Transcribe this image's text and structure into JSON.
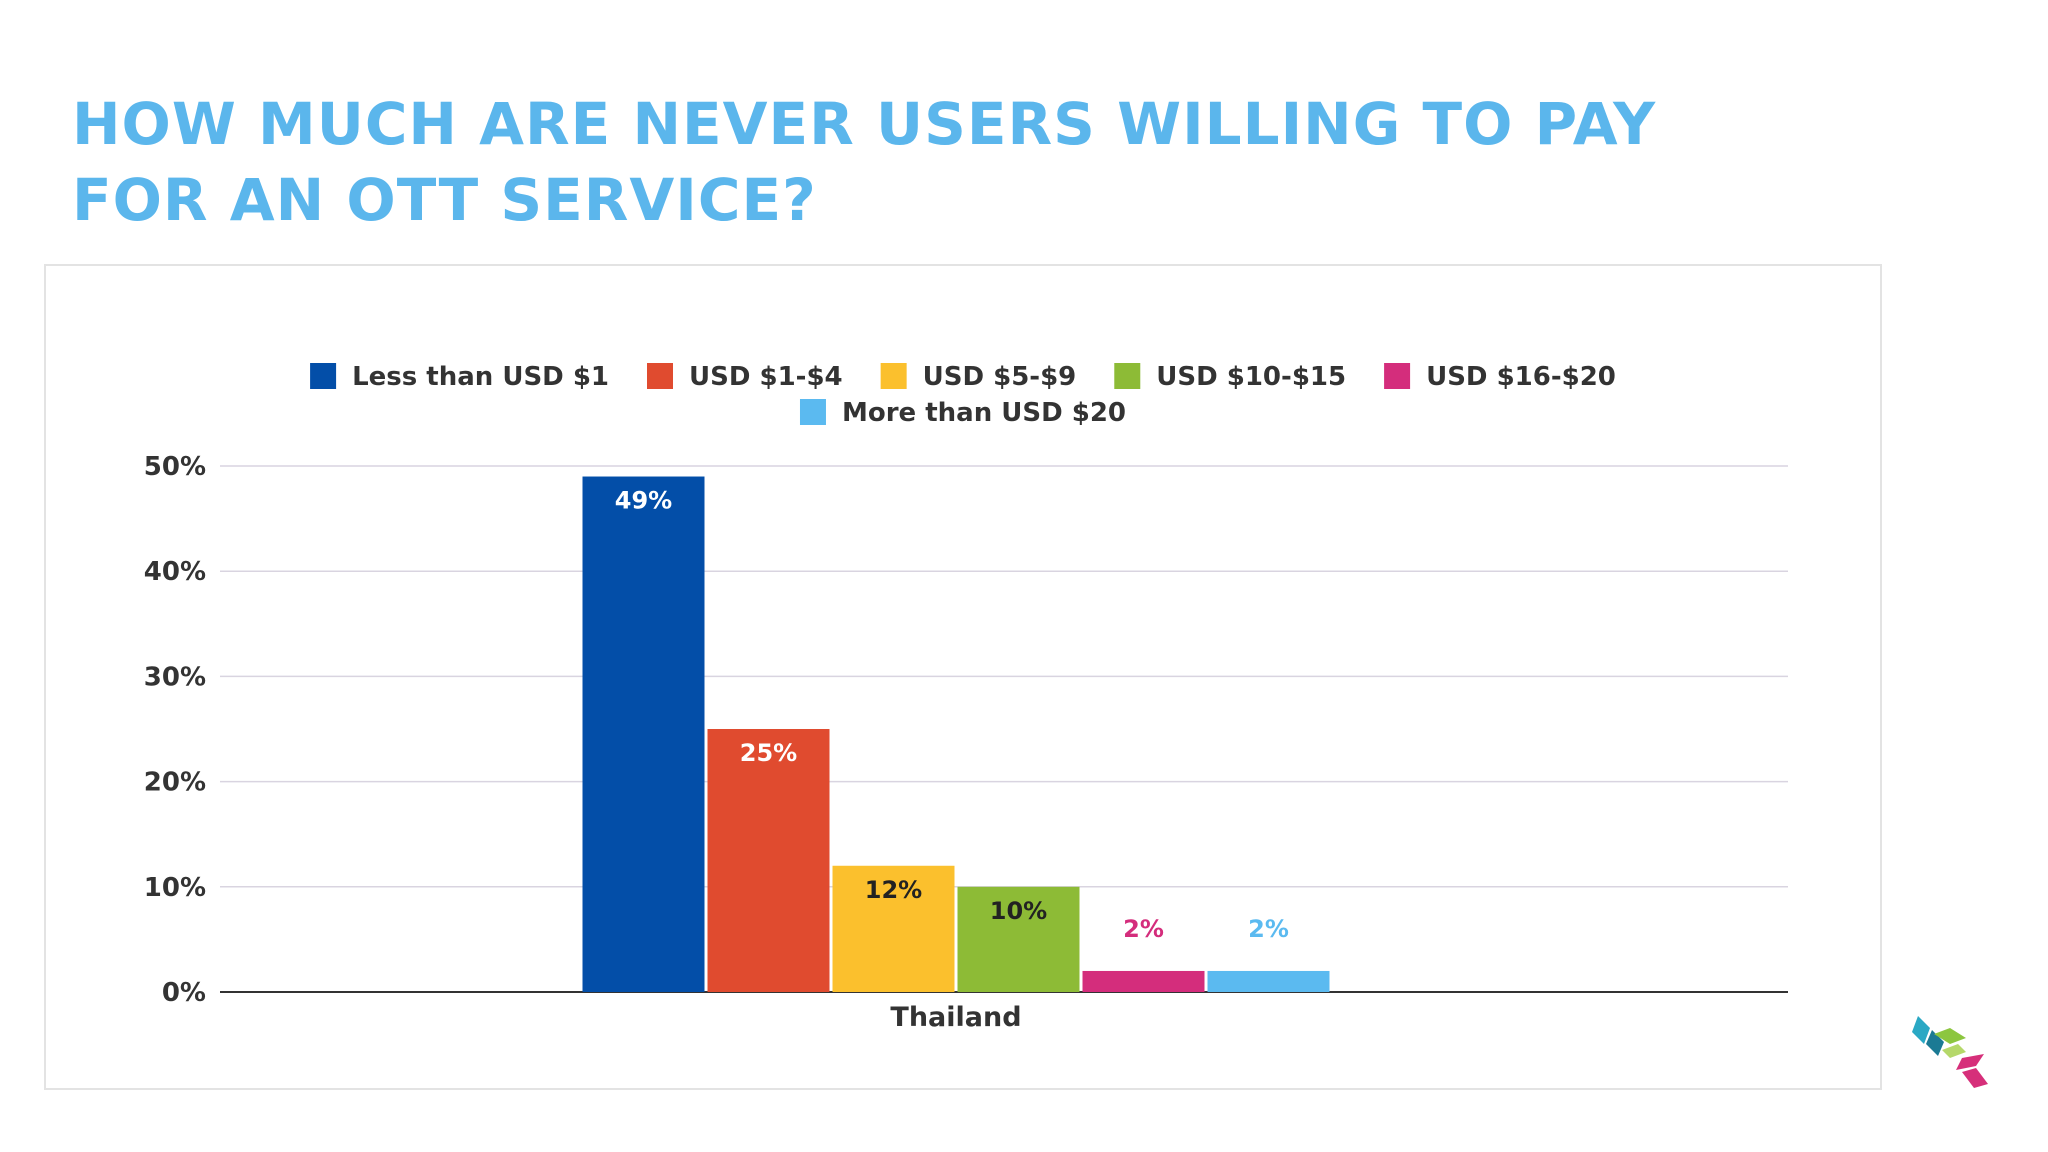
{
  "slide": {
    "title_line1": "HOW MUCH ARE NEVER USERS WILLING TO PAY",
    "title_line2": "FOR AN OTT SERVICE?"
  },
  "colors": {
    "title": "#5bb6ec",
    "grid": "#d9d4e0",
    "axis": "#333333"
  },
  "logo": {
    "icon": "cube-stack-logo-icon",
    "colors": [
      "#2aa8c4",
      "#1b7a94",
      "#8cc63f",
      "#d62f7a"
    ]
  },
  "chart_data": {
    "type": "bar",
    "categories": [
      "Thailand"
    ],
    "series": [
      {
        "name": "Less than USD $1",
        "values": [
          49
        ],
        "color": "#034ea8",
        "label": "49%",
        "label_color": "#ffffff"
      },
      {
        "name": "USD $1-$4",
        "values": [
          25
        ],
        "color": "#e04b2f",
        "label": "25%",
        "label_color": "#ffffff"
      },
      {
        "name": "USD $5-$9",
        "values": [
          12
        ],
        "color": "#fbc02d",
        "label": "12%",
        "label_color": "#222222"
      },
      {
        "name": "USD $10-$15",
        "values": [
          10
        ],
        "color": "#8dbb36",
        "label": "10%",
        "label_color": "#222222"
      },
      {
        "name": "USD $16-$20",
        "values": [
          2
        ],
        "color": "#d42d7c",
        "label": "2%",
        "label_color": "#d42d7c"
      },
      {
        "name": "More than USD $20",
        "values": [
          2
        ],
        "color": "#5bbaf0",
        "label": "2%",
        "label_color": "#5bbaf0"
      }
    ],
    "yticks": [
      {
        "value": 0,
        "label": "0%"
      },
      {
        "value": 10,
        "label": "10%"
      },
      {
        "value": 20,
        "label": "20%"
      },
      {
        "value": 30,
        "label": "30%"
      },
      {
        "value": 40,
        "label": "40%"
      },
      {
        "value": 50,
        "label": "50%"
      }
    ],
    "ylim": [
      0,
      50
    ],
    "grid": true,
    "legend_position": "top",
    "title": "",
    "xlabel": "",
    "ylabel": ""
  }
}
